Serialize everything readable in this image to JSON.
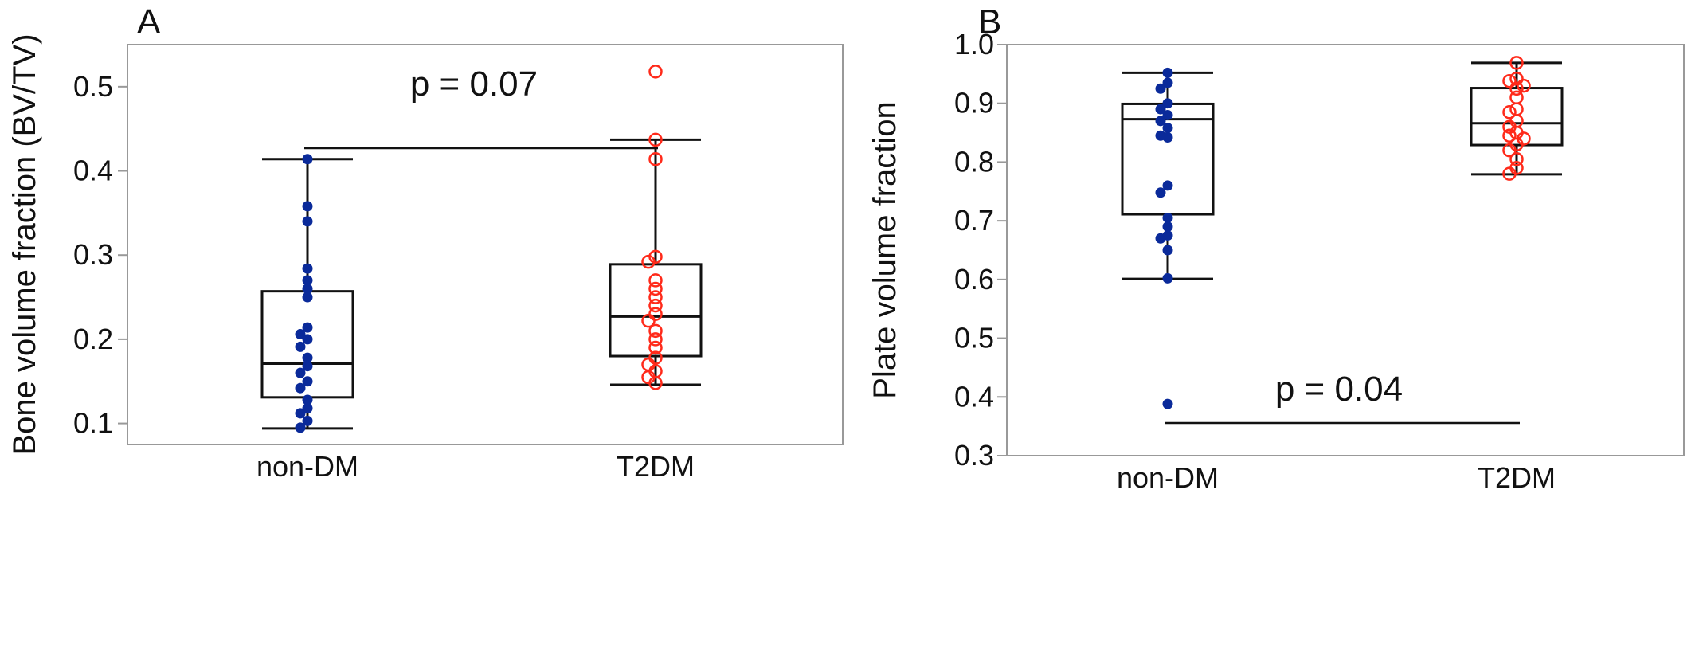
{
  "chart_data": [
    {
      "type": "box",
      "panel_label": "A",
      "categories": [
        "non-DM",
        "T2DM"
      ],
      "ylabel": "Bone volume fraction (BV/TV)",
      "ylim": [
        0.075,
        0.55
      ],
      "yticks": [
        0.1,
        0.2,
        0.3,
        0.4,
        0.5
      ],
      "ytick_labels": [
        "0.1",
        "0.2",
        "0.3",
        "0.4",
        "0.5"
      ],
      "annotation": "p = 0.07",
      "series": [
        {
          "category": "non-DM",
          "marker": "filled-circle",
          "color": "#0a2a9a",
          "min": 0.094,
          "q1": 0.131,
          "median": 0.171,
          "q3": 0.257,
          "max": 0.414,
          "points": [
            0.414,
            0.358,
            0.34,
            0.284,
            0.27,
            0.26,
            0.25,
            0.214,
            0.206,
            0.2,
            0.191,
            0.178,
            0.168,
            0.16,
            0.15,
            0.142,
            0.128,
            0.118,
            0.112,
            0.103,
            0.095
          ]
        },
        {
          "category": "T2DM",
          "marker": "open-circle",
          "color": "#ff2a1a",
          "min": 0.146,
          "q1": 0.18,
          "median": 0.227,
          "q3": 0.289,
          "max": 0.437,
          "points": [
            0.518,
            0.437,
            0.414,
            0.298,
            0.292,
            0.27,
            0.26,
            0.25,
            0.24,
            0.23,
            0.222,
            0.21,
            0.2,
            0.19,
            0.178,
            0.17,
            0.162,
            0.155,
            0.148
          ]
        }
      ]
    },
    {
      "type": "box",
      "panel_label": "B",
      "categories": [
        "non-DM",
        "T2DM"
      ],
      "ylabel": "Plate volume fraction",
      "ylim": [
        0.3,
        1.0
      ],
      "yticks": [
        0.3,
        0.4,
        0.5,
        0.6,
        0.7,
        0.8,
        0.9,
        1.0
      ],
      "ytick_labels": [
        "0.3",
        "0.4",
        "0.5",
        "0.6",
        "0.7",
        "0.8",
        "0.9",
        "1.0"
      ],
      "annotation": "p = 0.04",
      "series": [
        {
          "category": "non-DM",
          "marker": "filled-circle",
          "color": "#0a2a9a",
          "min": 0.601,
          "q1": 0.711,
          "median": 0.873,
          "q3": 0.899,
          "max": 0.952,
          "points": [
            0.952,
            0.935,
            0.925,
            0.9,
            0.89,
            0.88,
            0.87,
            0.858,
            0.845,
            0.842,
            0.76,
            0.748,
            0.705,
            0.69,
            0.675,
            0.67,
            0.65,
            0.602,
            0.388
          ]
        },
        {
          "category": "T2DM",
          "marker": "open-circle",
          "color": "#ff2a1a",
          "min": 0.779,
          "q1": 0.829,
          "median": 0.866,
          "q3": 0.926,
          "max": 0.969,
          "points": [
            0.969,
            0.942,
            0.938,
            0.93,
            0.925,
            0.91,
            0.89,
            0.885,
            0.87,
            0.86,
            0.85,
            0.845,
            0.84,
            0.83,
            0.82,
            0.805,
            0.79,
            0.78
          ]
        }
      ]
    }
  ]
}
